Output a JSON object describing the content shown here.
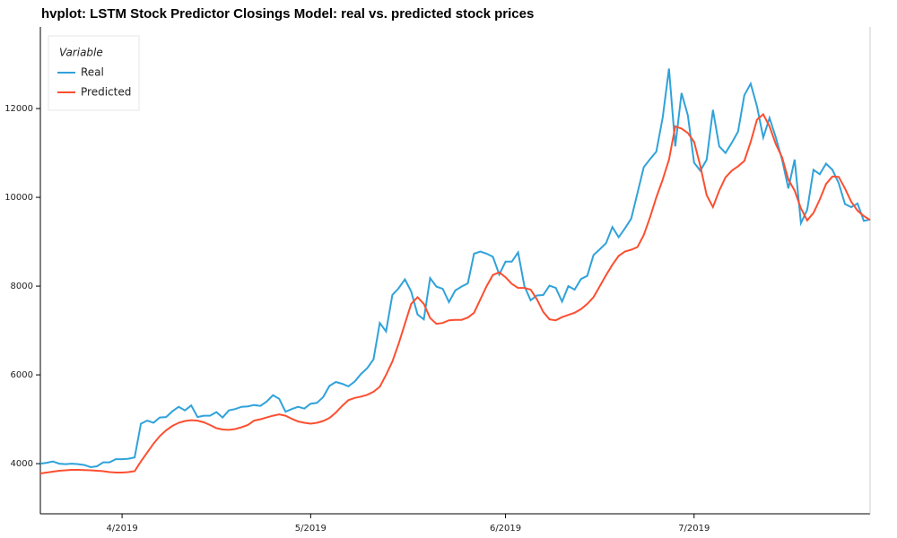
{
  "chart_data": {
    "type": "line",
    "title": "hvplot: LSTM Stock Predictor Closings Model: real vs. predicted stock prices",
    "legend_title": "Variable",
    "legend": "top-left",
    "categories": [
      null,
      null,
      null,
      null,
      null,
      null,
      null,
      null,
      null,
      null,
      null,
      null,
      null,
      "4/2019",
      null,
      null,
      null,
      null,
      null,
      null,
      null,
      null,
      null,
      null,
      null,
      null,
      null,
      null,
      null,
      null,
      null,
      null,
      null,
      null,
      null,
      null,
      null,
      null,
      null,
      null,
      null,
      null,
      null,
      "5/2019",
      null,
      null,
      null,
      null,
      null,
      null,
      null,
      null,
      null,
      null,
      null,
      null,
      null,
      null,
      null,
      null,
      null,
      null,
      null,
      null,
      null,
      null,
      null,
      null,
      null,
      null,
      null,
      null,
      null,
      null,
      "6/2019",
      null,
      null,
      null,
      null,
      null,
      null,
      null,
      null,
      null,
      null,
      null,
      null,
      null,
      null,
      null,
      null,
      null,
      null,
      null,
      null,
      null,
      null,
      null,
      null,
      null,
      null,
      null,
      null,
      null,
      "7/2019",
      null,
      null,
      null,
      null,
      null,
      null,
      null,
      null,
      null,
      null,
      null,
      null,
      null,
      null,
      null,
      null,
      null,
      null,
      null,
      null,
      null,
      null,
      null,
      null,
      null,
      null,
      null,
      null
    ],
    "series": [
      {
        "name": "Real",
        "color": "#30a2da",
        "values": [
          4000,
          4020,
          4050,
          4000,
          3990,
          4000,
          3990,
          3970,
          3920,
          3940,
          4030,
          4030,
          4100,
          4100,
          4110,
          4140,
          4900,
          4970,
          4920,
          5040,
          5050,
          5180,
          5280,
          5200,
          5310,
          5050,
          5080,
          5080,
          5160,
          5040,
          5200,
          5230,
          5280,
          5290,
          5320,
          5300,
          5400,
          5540,
          5460,
          5170,
          5230,
          5280,
          5240,
          5350,
          5370,
          5500,
          5750,
          5840,
          5800,
          5740,
          5850,
          6020,
          6150,
          6350,
          7170,
          6980,
          7800,
          7950,
          8150,
          7880,
          7360,
          7250,
          8180,
          7990,
          7940,
          7640,
          7900,
          7990,
          8060,
          8730,
          8780,
          8730,
          8660,
          8260,
          8550,
          8550,
          8760,
          8000,
          7680,
          7790,
          7800,
          8010,
          7960,
          7650,
          8000,
          7920,
          8160,
          8230,
          8700,
          8830,
          8970,
          9330,
          9100,
          9300,
          9520,
          10100,
          10680,
          10860,
          11030,
          11800,
          12900,
          11150,
          12350,
          11850,
          10780,
          10600,
          10850,
          11970,
          11150,
          11000,
          11230,
          11480,
          12300,
          12560,
          12050,
          11350,
          11790,
          11350,
          10850,
          10200,
          10850,
          9420,
          9720,
          10620,
          10520,
          10760,
          10620,
          10320,
          9850,
          9780,
          9860,
          9470,
          9500
        ]
      },
      {
        "name": "Predicted",
        "color": "#fc4f30",
        "values": [
          3780,
          3800,
          3820,
          3840,
          3850,
          3860,
          3860,
          3855,
          3850,
          3840,
          3830,
          3810,
          3800,
          3800,
          3810,
          3830,
          4050,
          4250,
          4450,
          4620,
          4750,
          4850,
          4920,
          4960,
          4980,
          4970,
          4930,
          4870,
          4800,
          4770,
          4760,
          4780,
          4820,
          4870,
          4970,
          5000,
          5040,
          5080,
          5110,
          5080,
          5010,
          4950,
          4920,
          4900,
          4920,
          4960,
          5030,
          5150,
          5300,
          5430,
          5480,
          5510,
          5550,
          5620,
          5730,
          6000,
          6300,
          6700,
          7150,
          7600,
          7750,
          7600,
          7280,
          7150,
          7170,
          7230,
          7240,
          7240,
          7290,
          7400,
          7700,
          8000,
          8250,
          8310,
          8200,
          8050,
          7960,
          7960,
          7920,
          7700,
          7420,
          7250,
          7230,
          7300,
          7350,
          7400,
          7480,
          7600,
          7750,
          8000,
          8250,
          8480,
          8680,
          8780,
          8820,
          8880,
          9150,
          9550,
          10000,
          10400,
          10850,
          11600,
          11550,
          11450,
          11250,
          10700,
          10050,
          9780,
          10150,
          10450,
          10600,
          10700,
          10820,
          11250,
          11750,
          11870,
          11600,
          11200,
          10900,
          10400,
          10150,
          9750,
          9480,
          9650,
          9950,
          10300,
          10470,
          10460,
          10200,
          9900,
          9700,
          9580,
          9490
        ]
      }
    ],
    "ylim": [
      2870,
      13840
    ],
    "yticks": [
      4000,
      6000,
      8000,
      10000,
      12000
    ]
  }
}
